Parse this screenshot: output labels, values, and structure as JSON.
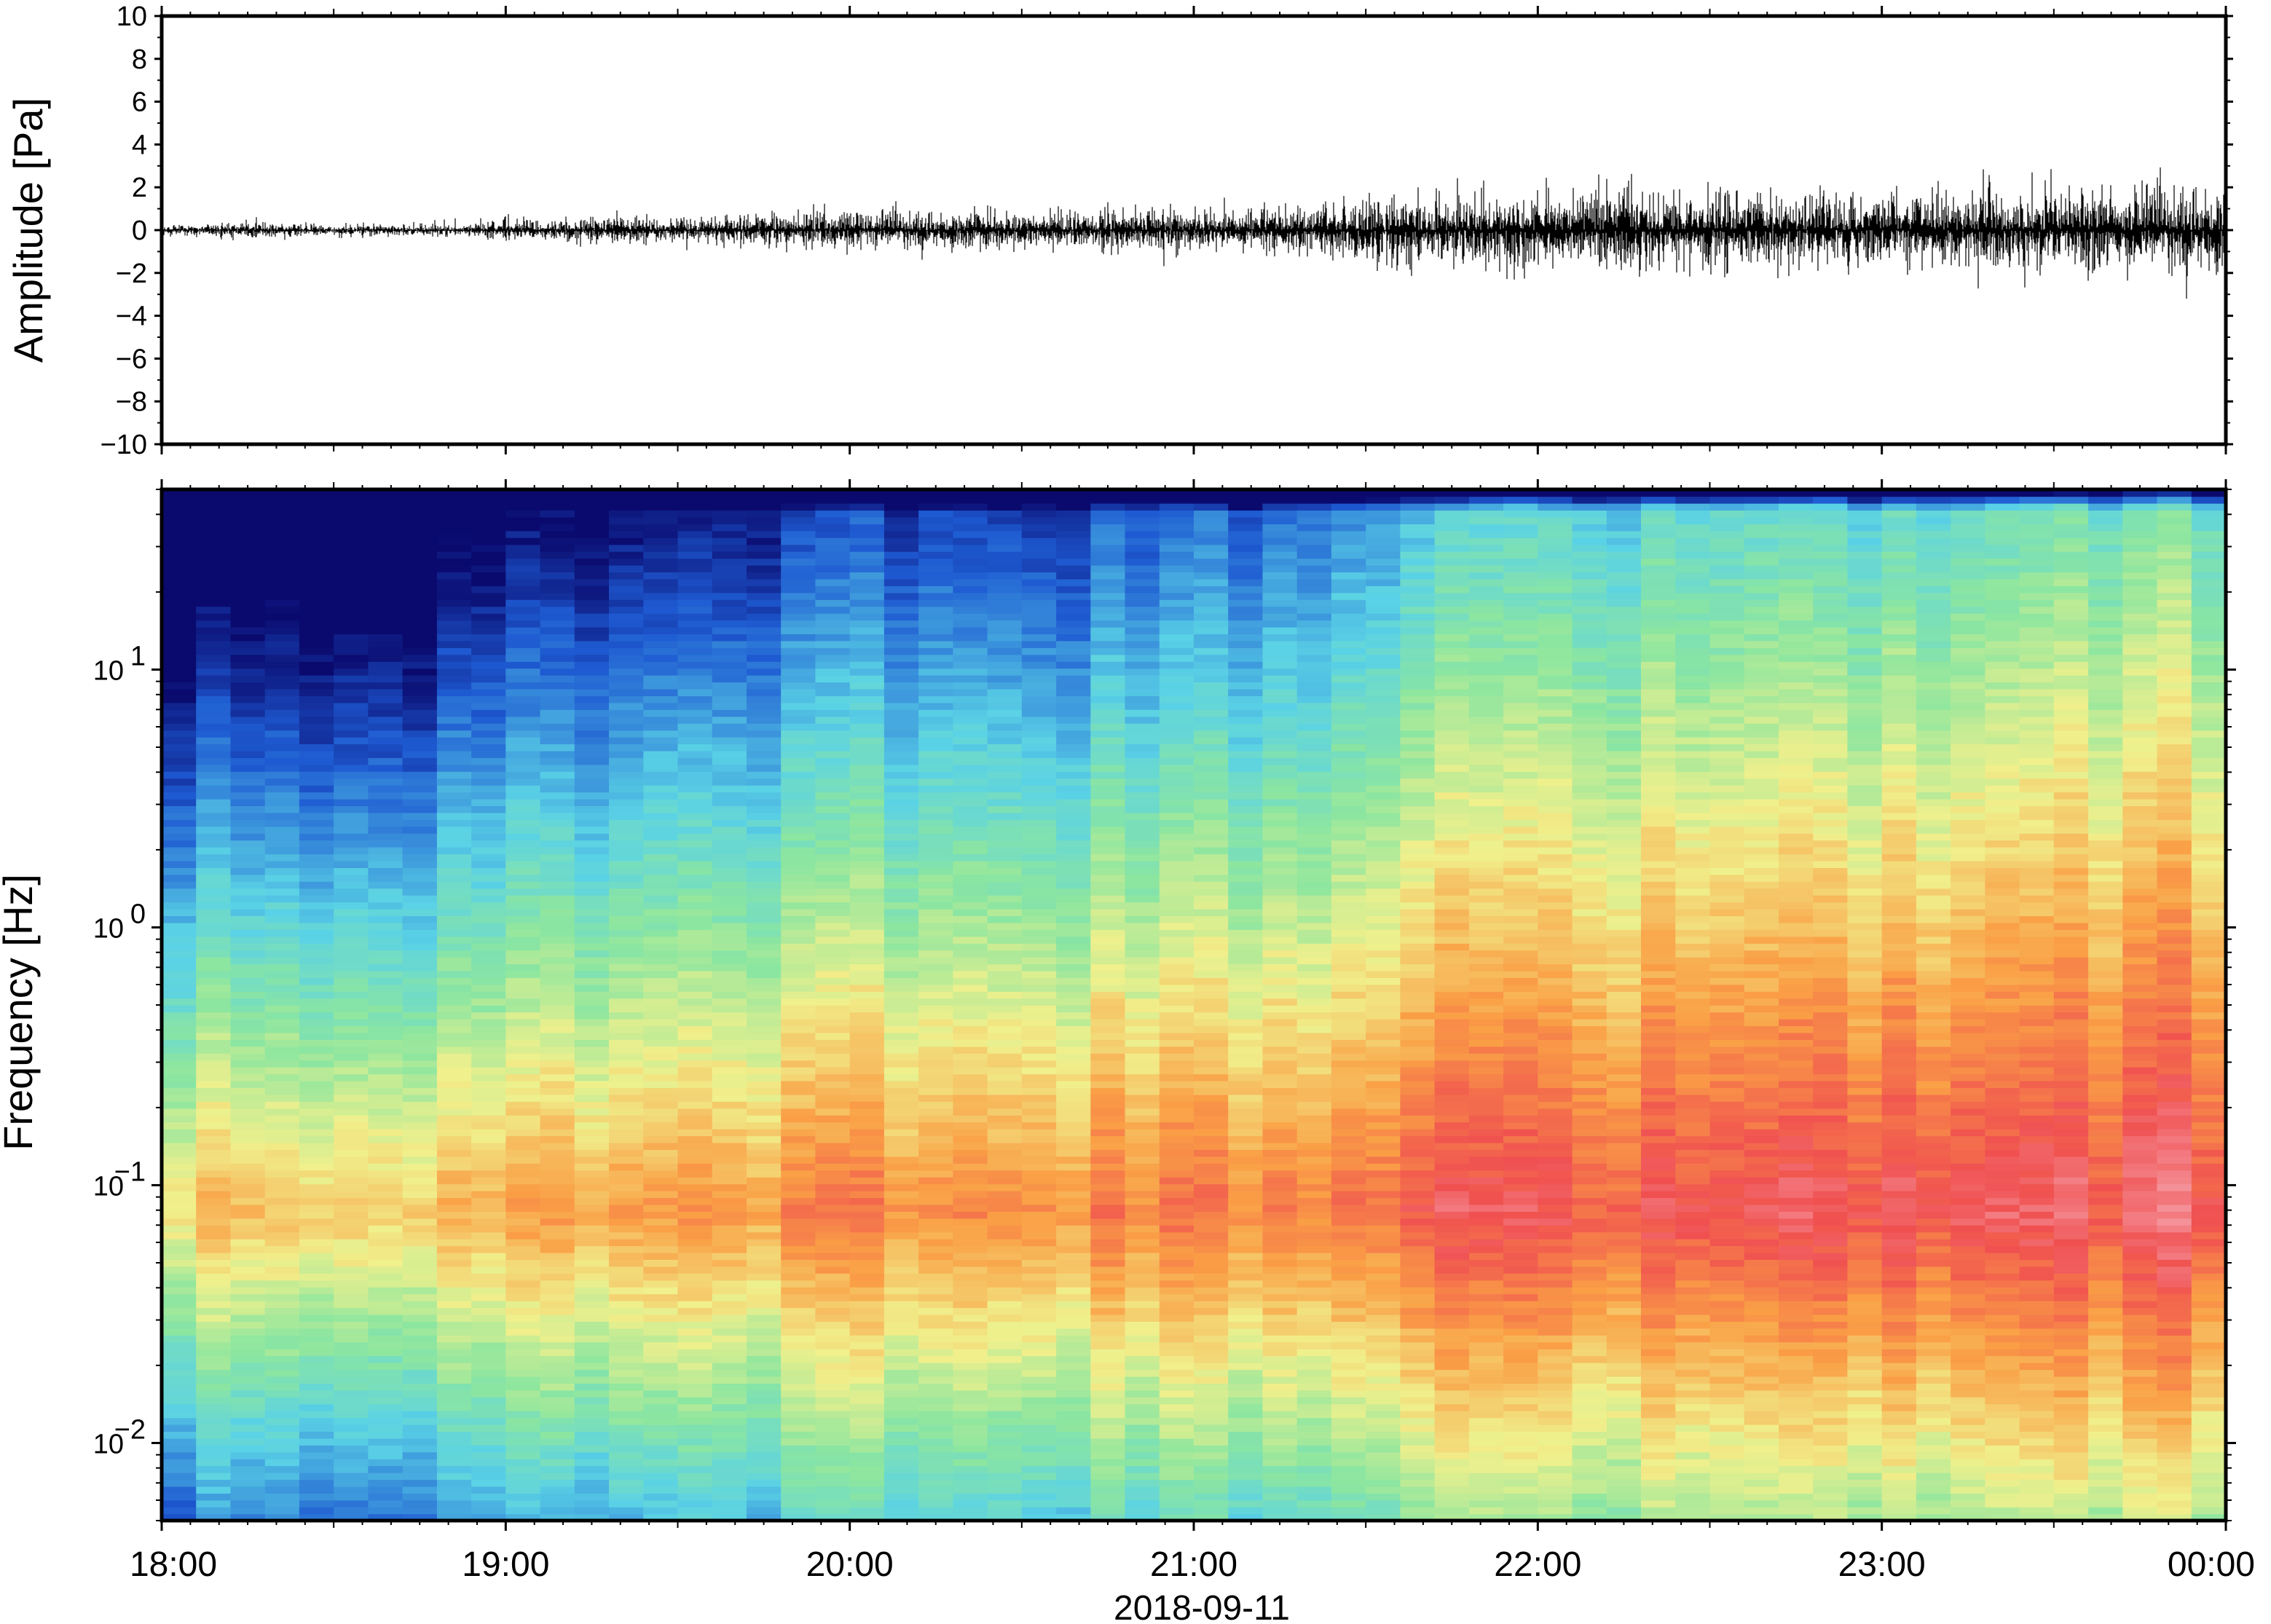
{
  "chart_data": [
    {
      "type": "line",
      "ylabel": "Amplitude [Pa]",
      "ylim": [
        -10,
        10
      ],
      "yticks": [
        10,
        8,
        6,
        4,
        2,
        0,
        -2,
        -4,
        -6,
        -8,
        -10
      ],
      "ytick_labels": [
        "10",
        "8",
        "6",
        "4",
        "2",
        "0",
        "−2",
        "−4",
        "−6",
        "−8",
        "−10"
      ],
      "xlim": [
        "2018-09-11 18:00",
        "2018-09-12 00:00"
      ],
      "grid": false,
      "series": [
        {
          "time_hours": [
            18.0,
            18.25,
            18.5,
            18.75,
            19.0,
            19.25,
            19.5,
            19.75,
            20.0,
            20.25,
            20.5,
            20.75,
            21.0,
            21.25,
            21.5,
            21.75,
            22.0,
            22.25,
            22.5,
            22.75,
            23.0,
            23.25,
            23.5,
            23.75,
            24.0
          ],
          "envelope_pa": [
            0.2,
            0.3,
            0.2,
            0.25,
            0.4,
            0.5,
            0.5,
            0.6,
            0.8,
            0.8,
            0.7,
            0.8,
            0.8,
            0.9,
            1.3,
            1.4,
            1.6,
            1.6,
            1.4,
            1.5,
            1.5,
            1.6,
            1.6,
            1.8,
            1.9
          ],
          "peak_pa": [
            0.4,
            0.5,
            0.4,
            0.5,
            0.7,
            1.0,
            0.8,
            0.9,
            1.5,
            1.3,
            1.1,
            1.5,
            1.3,
            1.5,
            2.2,
            2.1,
            2.6,
            3.2,
            2.2,
            2.2,
            2.5,
            3.3,
            3.0,
            3.2,
            2.4
          ]
        }
      ]
    },
    {
      "type": "heatmap",
      "ylabel": "Frequency [Hz]",
      "xlabel": "2018-09-11",
      "yscale": "log",
      "ylim": [
        0.005,
        50
      ],
      "yticks": [
        0.01,
        0.1,
        1,
        10
      ],
      "ytick_labels": [
        {
          "base": "10",
          "exp": "−2"
        },
        {
          "base": "10",
          "exp": "−1"
        },
        {
          "base": "10",
          "exp": "0"
        },
        {
          "base": "10",
          "exp": "1"
        }
      ],
      "xticks": [
        "18:00",
        "19:00",
        "20:00",
        "21:00",
        "22:00",
        "23:00",
        "00:00"
      ],
      "xlim": [
        "2018-09-11 18:00",
        "2018-09-12 00:00"
      ],
      "colormap": "rainbow",
      "colors": {
        "low": "#0a0a6e",
        "blue": "#1e5ad2",
        "cyan": "#5ad2e6",
        "green": "#8ce6a0",
        "yellow": "#f0f08c",
        "orange": "#faa046",
        "red": "#f05050",
        "high": "#f5a0aa"
      },
      "peak_frequency_hz": 0.08,
      "time_columns_hours": [
        18.0,
        18.1,
        18.2,
        18.3,
        18.4,
        18.5,
        18.6,
        18.7,
        18.8,
        18.9,
        19.0,
        19.1,
        19.2,
        19.3,
        19.4,
        19.5,
        19.6,
        19.7,
        19.8,
        19.9,
        20.0,
        20.1,
        20.2,
        20.3,
        20.4,
        20.5,
        20.6,
        20.7,
        20.8,
        20.9,
        21.0,
        21.1,
        21.2,
        21.3,
        21.4,
        21.5,
        21.6,
        21.7,
        21.8,
        21.9,
        22.0,
        22.1,
        22.2,
        22.3,
        22.4,
        22.5,
        22.6,
        22.7,
        22.8,
        22.9,
        23.0,
        23.1,
        23.2,
        23.3,
        23.4,
        23.5,
        23.6,
        23.7,
        23.8,
        23.9
      ],
      "relative_level": [
        0.18,
        0.2,
        0.16,
        0.22,
        0.18,
        0.2,
        0.22,
        0.19,
        0.28,
        0.3,
        0.33,
        0.3,
        0.32,
        0.34,
        0.36,
        0.35,
        0.38,
        0.4,
        0.42,
        0.44,
        0.45,
        0.43,
        0.47,
        0.44,
        0.46,
        0.42,
        0.45,
        0.47,
        0.5,
        0.48,
        0.52,
        0.5,
        0.53,
        0.55,
        0.6,
        0.62,
        0.64,
        0.66,
        0.68,
        0.7,
        0.72,
        0.74,
        0.72,
        0.75,
        0.73,
        0.72,
        0.74,
        0.72,
        0.71,
        0.7,
        0.72,
        0.73,
        0.72,
        0.74,
        0.76,
        0.78,
        0.8,
        0.79,
        0.81,
        0.8
      ]
    }
  ]
}
